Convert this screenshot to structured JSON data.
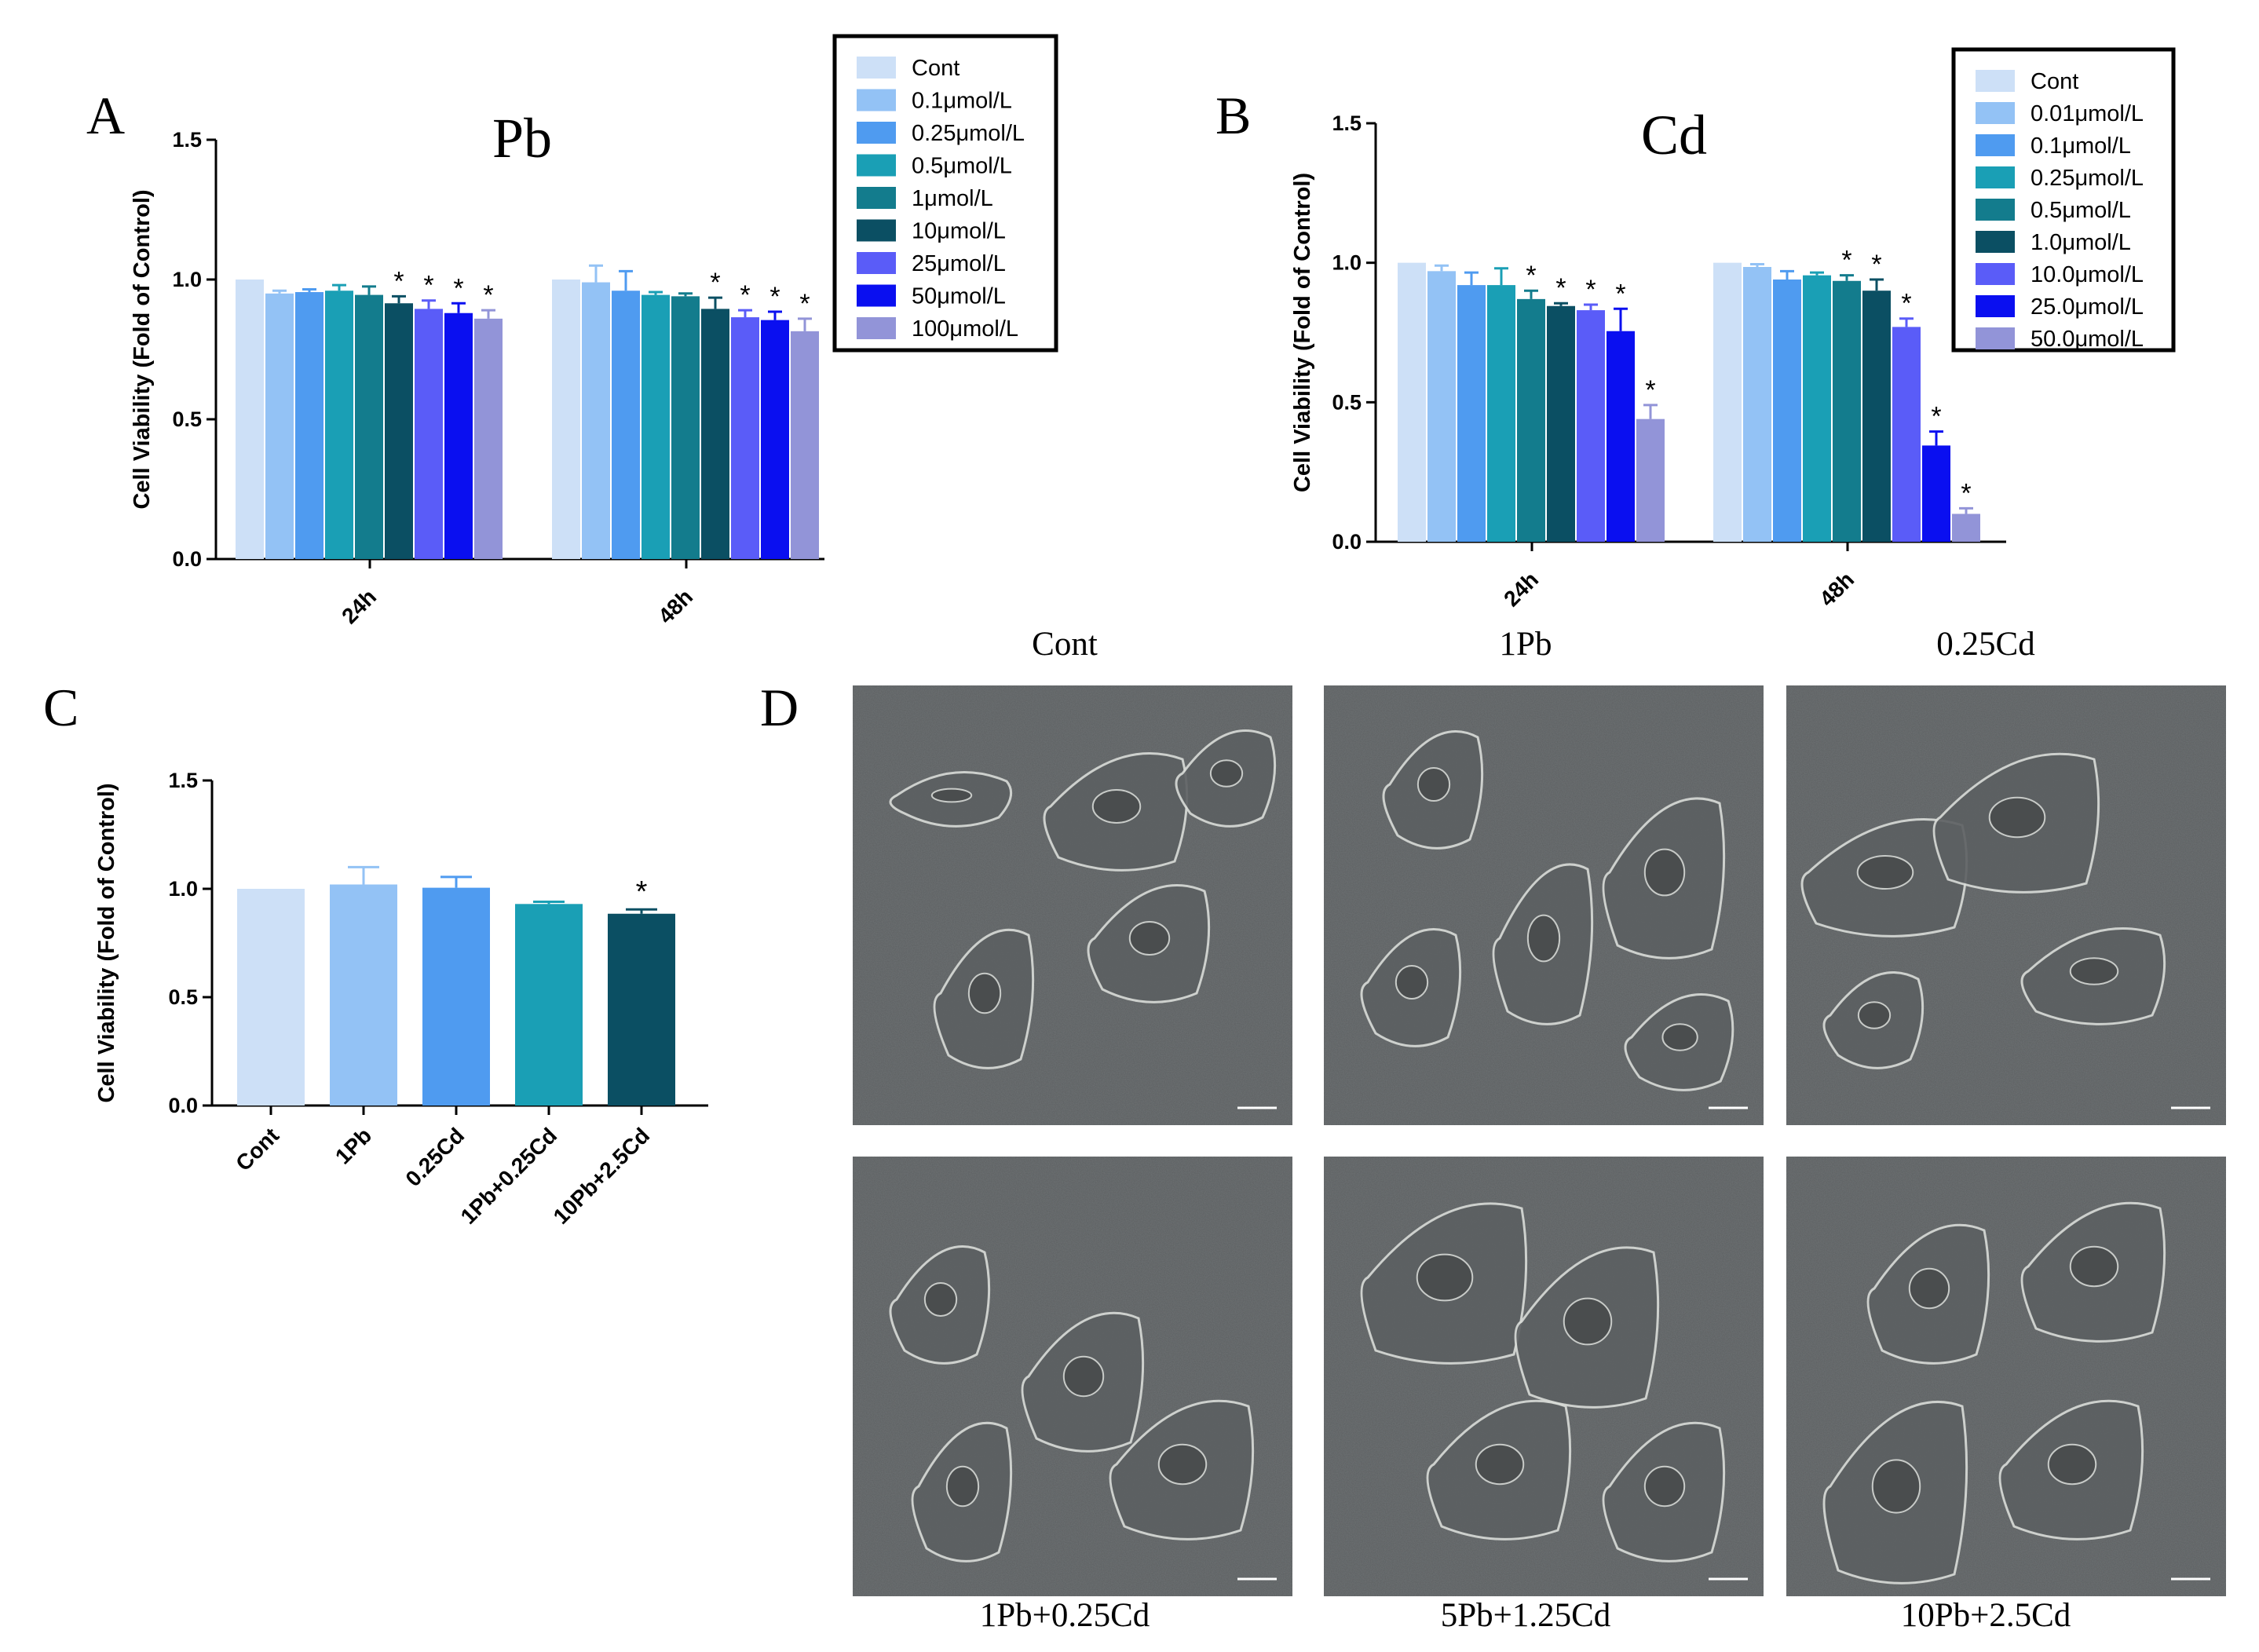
{
  "figure": {
    "panel_letters": [
      "A",
      "B",
      "C",
      "D"
    ]
  },
  "chart_data": [
    {
      "id": "A",
      "type": "bar",
      "title": "Pb",
      "ylabel": "Cell Viability (Fold of Control)",
      "xlabel": "",
      "ylim": [
        0,
        1.5
      ],
      "yticks": [
        "0.0",
        "0.5",
        "1.0",
        "1.5"
      ],
      "categories": [
        "24h",
        "48h"
      ],
      "legend_position": "top-right",
      "grid": false,
      "series": [
        {
          "name": "Cont",
          "color": "#cde0f7",
          "values": [
            1.0,
            1.0
          ],
          "errors": [
            0.0,
            0.0
          ],
          "sig": [
            "",
            ""
          ]
        },
        {
          "name": "0.1μmol/L",
          "color": "#93c2f5",
          "values": [
            0.95,
            0.99
          ],
          "errors": [
            0.01,
            0.06
          ],
          "sig": [
            "",
            ""
          ]
        },
        {
          "name": "0.25μmol/L",
          "color": "#4f9bf0",
          "values": [
            0.955,
            0.96
          ],
          "errors": [
            0.01,
            0.07
          ],
          "sig": [
            "",
            ""
          ]
        },
        {
          "name": "0.5μmol/L",
          "color": "#1a9fb5",
          "values": [
            0.96,
            0.945
          ],
          "errors": [
            0.02,
            0.01
          ],
          "sig": [
            "",
            ""
          ]
        },
        {
          "name": "1μmol/L",
          "color": "#137c8d",
          "values": [
            0.945,
            0.94
          ],
          "errors": [
            0.03,
            0.01
          ],
          "sig": [
            "",
            ""
          ]
        },
        {
          "name": "10μmol/L",
          "color": "#0b4f63",
          "values": [
            0.915,
            0.895
          ],
          "errors": [
            0.025,
            0.04
          ],
          "sig": [
            "*",
            "*"
          ]
        },
        {
          "name": "25μmol/L",
          "color": "#5a5cf8",
          "values": [
            0.895,
            0.865
          ],
          "errors": [
            0.03,
            0.025
          ],
          "sig": [
            "*",
            "*"
          ]
        },
        {
          "name": "50μmol/L",
          "color": "#0a0ff0",
          "values": [
            0.88,
            0.855
          ],
          "errors": [
            0.035,
            0.03
          ],
          "sig": [
            "*",
            "*"
          ]
        },
        {
          "name": "100μmol/L",
          "color": "#9294d8",
          "values": [
            0.86,
            0.815
          ],
          "errors": [
            0.03,
            0.045
          ],
          "sig": [
            "*",
            "*"
          ]
        }
      ]
    },
    {
      "id": "B",
      "type": "bar",
      "title": "Cd",
      "ylabel": "Cell Viability (Fold of Control)",
      "xlabel": "",
      "ylim": [
        0,
        1.5
      ],
      "yticks": [
        "0.0",
        "0.5",
        "1.0",
        "1.5"
      ],
      "categories": [
        "24h",
        "48h"
      ],
      "legend_position": "top-right",
      "grid": false,
      "series": [
        {
          "name": "Cont",
          "color": "#cde0f7",
          "values": [
            1.0,
            1.0
          ],
          "errors": [
            0.0,
            0.0
          ],
          "sig": [
            "",
            ""
          ]
        },
        {
          "name": "0.01μmol/L",
          "color": "#93c2f5",
          "values": [
            0.97,
            0.985
          ],
          "errors": [
            0.02,
            0.01
          ],
          "sig": [
            "",
            ""
          ]
        },
        {
          "name": "0.1μmol/L",
          "color": "#4f9bf0",
          "values": [
            0.92,
            0.94
          ],
          "errors": [
            0.045,
            0.03
          ],
          "sig": [
            "",
            ""
          ]
        },
        {
          "name": "0.25μmol/L",
          "color": "#1a9fb5",
          "values": [
            0.92,
            0.955
          ],
          "errors": [
            0.06,
            0.01
          ],
          "sig": [
            "",
            ""
          ]
        },
        {
          "name": "0.5μmol/L",
          "color": "#137c8d",
          "values": [
            0.87,
            0.935
          ],
          "errors": [
            0.03,
            0.02
          ],
          "sig": [
            "*",
            "*"
          ]
        },
        {
          "name": "1.0μmol/L",
          "color": "#0b4f63",
          "values": [
            0.845,
            0.9
          ],
          "errors": [
            0.01,
            0.04
          ],
          "sig": [
            "*",
            "*"
          ]
        },
        {
          "name": "10.0μmol/L",
          "color": "#5a5cf8",
          "values": [
            0.83,
            0.77
          ],
          "errors": [
            0.02,
            0.03
          ],
          "sig": [
            "*",
            "*"
          ]
        },
        {
          "name": "25.0μmol/L",
          "color": "#0a0ff0",
          "values": [
            0.755,
            0.345
          ],
          "errors": [
            0.08,
            0.05
          ],
          "sig": [
            "*",
            "*"
          ]
        },
        {
          "name": "50.0μmol/L",
          "color": "#9294d8",
          "values": [
            0.44,
            0.1
          ],
          "errors": [
            0.05,
            0.02
          ],
          "sig": [
            "*",
            "*"
          ]
        }
      ]
    },
    {
      "id": "C",
      "type": "bar",
      "title": "",
      "ylabel": "Cell Viability (Fold of Control)",
      "xlabel": "",
      "ylim": [
        0,
        1.5
      ],
      "yticks": [
        "0.0",
        "0.5",
        "1.0",
        "1.5"
      ],
      "categories": [
        "Cont",
        "1Pb",
        "0.25Cd",
        "1Pb+0.25Cd",
        "10Pb+2.5Cd"
      ],
      "colors": [
        "#cde0f7",
        "#93c2f5",
        "#4f9bf0",
        "#1a9fb5",
        "#0b4f63"
      ],
      "values": [
        1.0,
        1.02,
        1.005,
        0.93,
        0.885
      ],
      "errors": [
        0.0,
        0.08,
        0.05,
        0.01,
        0.02
      ],
      "sig": [
        "",
        "",
        "",
        "",
        "*"
      ],
      "grid": false
    }
  ],
  "micrographs": {
    "labels_top": [
      "Cont",
      "1Pb",
      "0.25Cd"
    ],
    "labels_bottom": [
      "1Pb+0.25Cd",
      "5Pb+1.25Cd",
      "10Pb+2.5Cd"
    ]
  }
}
